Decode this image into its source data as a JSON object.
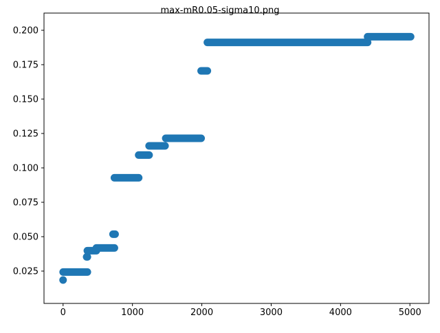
{
  "figure": {
    "title": "max-mR0.05-sigma10.png"
  },
  "chart_data": {
    "type": "scatter",
    "title": "max-mR0.05-sigma10.png",
    "xlabel": "",
    "ylabel": "",
    "xlim": [
      -275,
      5275
    ],
    "ylim": [
      0.0015,
      0.2125
    ],
    "grid": false,
    "legend": "none",
    "marker_color": "#1f77b4",
    "xticks": [
      0,
      1000,
      2000,
      3000,
      4000,
      5000
    ],
    "xtick_labels": [
      "0",
      "1000",
      "2000",
      "3000",
      "4000",
      "5000"
    ],
    "yticks": [
      0.025,
      0.05,
      0.075,
      0.1,
      0.125,
      0.15,
      0.175,
      0.2
    ],
    "ytick_labels": [
      "0.025",
      "0.050",
      "0.075",
      "0.100",
      "0.125",
      "0.150",
      "0.175",
      "0.200"
    ],
    "segments": [
      {
        "x": [
          0,
          1
        ],
        "y": 0.0185
      },
      {
        "x": [
          1,
          350
        ],
        "y": 0.0243
      },
      {
        "x": [
          340,
          350
        ],
        "y": 0.0353
      },
      {
        "x": [
          350,
          480
        ],
        "y": 0.0398
      },
      {
        "x": [
          480,
          740
        ],
        "y": 0.0418
      },
      {
        "x": [
          720,
          750
        ],
        "y": 0.0518
      },
      {
        "x": [
          740,
          1090
        ],
        "y": 0.0928
      },
      {
        "x": [
          1090,
          1240
        ],
        "y": 0.1093
      },
      {
        "x": [
          1240,
          1470
        ],
        "y": 0.116
      },
      {
        "x": [
          1480,
          1990
        ],
        "y": 0.1215
      },
      {
        "x": [
          1990,
          2080
        ],
        "y": 0.1705
      },
      {
        "x": [
          2080,
          4390
        ],
        "y": 0.1912
      },
      {
        "x": [
          4390,
          5010
        ],
        "y": 0.1953
      }
    ]
  }
}
